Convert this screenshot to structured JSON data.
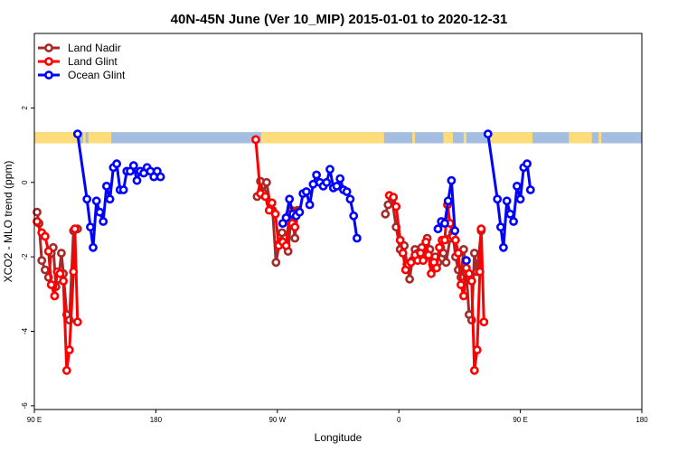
{
  "colors": {
    "land_nadir": "#a52a2a",
    "land_glint": "#ff0000",
    "ocean_glint": "#0000ff",
    "land_band": "#fedc7a",
    "ocean_band": "#a3bee0"
  },
  "chart_data": {
    "type": "line",
    "title": "40N-45N June (Ver 10_MIP)   2015-01-01 to 2020-12-31",
    "xlabel": "Longitude",
    "ylabel": "XCO2 - MLO trend (ppm)",
    "xlim": [
      90,
      540
    ],
    "ylim": [
      -6.1,
      4.0
    ],
    "x_ticks": [
      {
        "value": 90,
        "label": "90 E"
      },
      {
        "value": 180,
        "label": "180"
      },
      {
        "value": 270,
        "label": "90 W"
      },
      {
        "value": 360,
        "label": "0"
      },
      {
        "value": 450,
        "label": "90 E"
      },
      {
        "value": 540,
        "label": "180"
      }
    ],
    "y_ticks": [
      {
        "value": 2,
        "label": "2"
      },
      {
        "value": 0,
        "label": "0"
      },
      {
        "value": -2,
        "label": "-2"
      },
      {
        "value": -4,
        "label": "-4"
      },
      {
        "value": -6,
        "label": "-6"
      }
    ],
    "grid": false,
    "legend": "top-left",
    "band": {
      "y_range": [
        1.05,
        1.35
      ],
      "land_segments": [
        [
          90,
          122
        ],
        [
          126,
          128
        ],
        [
          130,
          147
        ],
        [
          258,
          349
        ],
        [
          370,
          372
        ],
        [
          393,
          400
        ],
        [
          408,
          410
        ],
        [
          427,
          459
        ],
        [
          486,
          503
        ],
        [
          508,
          510
        ]
      ]
    },
    "series": [
      {
        "name": "Land Nadir",
        "color_key": "land_nadir",
        "segments": [
          [
            [
              92,
              -0.8
            ],
            [
              93.5,
              -1.1
            ],
            [
              95.5,
              -2.1
            ],
            [
              98,
              -2.35
            ],
            [
              100.5,
              -2.55
            ],
            [
              102.5,
              -1.9
            ],
            [
              104,
              -1.75
            ],
            [
              106,
              -2.8
            ],
            [
              108,
              -2.6
            ],
            [
              110,
              -1.9
            ],
            [
              111.5,
              -2.45
            ],
            [
              114,
              -3.55
            ],
            [
              116,
              -3.7
            ],
            [
              119,
              -1.3
            ],
            [
              122,
              -1.25
            ]
          ],
          [
            [
              255,
              -0.38
            ],
            [
              257.5,
              0.03
            ],
            [
              259.5,
              -0.28
            ],
            [
              262,
              0.0
            ],
            [
              264.5,
              -0.55
            ],
            [
              266.5,
              -0.75
            ],
            [
              269,
              -2.15
            ],
            [
              271.5,
              -1.65
            ],
            [
              273.5,
              -1.35
            ],
            [
              276,
              -1.5
            ],
            [
              278,
              -1.85
            ],
            [
              280.5,
              -0.75
            ],
            [
              283,
              -1.5
            ],
            [
              285,
              -0.75
            ]
          ],
          [
            [
              350,
              -0.85
            ],
            [
              352,
              -0.6
            ],
            [
              355,
              -0.45
            ],
            [
              358,
              -1.2
            ],
            [
              361,
              -1.8
            ],
            [
              364,
              -1.7
            ],
            [
              366,
              -2.2
            ],
            [
              368,
              -2.6
            ],
            [
              370,
              -2.1
            ],
            [
              372,
              -1.8
            ],
            [
              374,
              -1.9
            ],
            [
              377,
              -1.75
            ],
            [
              379,
              -2.0
            ],
            [
              381,
              -1.5
            ],
            [
              383,
              -1.8
            ],
            [
              385,
              -2.2
            ],
            [
              387,
              -2.0
            ],
            [
              389,
              -2.15
            ],
            [
              391,
              -1.75
            ],
            [
              393,
              -1.9
            ],
            [
              395,
              -2.15
            ],
            [
              398,
              -1.5
            ],
            [
              400,
              -1.35
            ],
            [
              402,
              -2.0
            ],
            [
              404,
              -2.35
            ],
            [
              406,
              -2.55
            ],
            [
              408,
              -1.8
            ],
            [
              410,
              -2.45
            ],
            [
              412,
              -3.55
            ],
            [
              414,
              -3.7
            ],
            [
              416,
              -1.9
            ],
            [
              418,
              -2.4
            ],
            [
              421,
              -1.3
            ]
          ]
        ]
      },
      {
        "name": "Land Glint",
        "color_key": "land_glint",
        "segments": [
          [
            [
              92,
              -1.05
            ],
            [
              95.5,
              -1.35
            ],
            [
              98,
              -1.45
            ],
            [
              100.5,
              -1.85
            ],
            [
              102.5,
              -2.75
            ],
            [
              105,
              -3.05
            ],
            [
              107,
              -2.4
            ],
            [
              109,
              -2.45
            ],
            [
              111.5,
              -2.65
            ],
            [
              114,
              -5.05
            ],
            [
              116,
              -4.5
            ],
            [
              119,
              -2.4
            ],
            [
              120,
              -1.25
            ],
            [
              122,
              -3.75
            ]
          ],
          [
            [
              254,
              1.15
            ],
            [
              257.5,
              -0.3
            ],
            [
              261,
              -0.38
            ],
            [
              264,
              -0.75
            ],
            [
              266,
              -0.55
            ],
            [
              268.5,
              -0.85
            ],
            [
              271,
              -1.7
            ],
            [
              274,
              -1.6
            ],
            [
              276.5,
              -1.7
            ],
            [
              279,
              -0.85
            ],
            [
              281,
              -1.1
            ],
            [
              283,
              -1.2
            ],
            [
              285.5,
              -0.8
            ]
          ],
          [
            [
              353,
              -0.35
            ],
            [
              356,
              -0.4
            ],
            [
              358,
              -0.65
            ],
            [
              361,
              -1.55
            ],
            [
              363,
              -1.9
            ],
            [
              365,
              -2.35
            ],
            [
              367,
              -2.2
            ],
            [
              369,
              -2.15
            ],
            [
              372,
              -1.95
            ],
            [
              374,
              -2.1
            ],
            [
              376,
              -1.9
            ],
            [
              378,
              -2.1
            ],
            [
              380,
              -1.6
            ],
            [
              382,
              -1.95
            ],
            [
              384,
              -2.45
            ],
            [
              386,
              -2.15
            ],
            [
              388,
              -2.3
            ],
            [
              390,
              -1.75
            ],
            [
              392,
              -1.55
            ],
            [
              394,
              -1.55
            ],
            [
              396,
              -0.6
            ],
            [
              398,
              -1.1
            ],
            [
              400,
              -1.45
            ],
            [
              402,
              -1.55
            ],
            [
              404,
              -1.9
            ],
            [
              406,
              -2.75
            ],
            [
              408,
              -3.05
            ],
            [
              410,
              -2.3
            ],
            [
              412,
              -2.45
            ],
            [
              414,
              -2.65
            ],
            [
              416,
              -5.05
            ],
            [
              418,
              -4.5
            ],
            [
              420,
              -2.4
            ],
            [
              421,
              -1.25
            ],
            [
              423,
              -3.75
            ]
          ]
        ]
      },
      {
        "name": "Ocean Glint",
        "color_key": "ocean_glint",
        "segments": [
          [
            [
              122,
              1.3
            ],
            [
              129,
              -0.45
            ],
            [
              131.5,
              -1.2
            ],
            [
              133.5,
              -1.75
            ],
            [
              136,
              -0.5
            ],
            [
              138.5,
              -0.8
            ],
            [
              141,
              -1.05
            ],
            [
              143.5,
              -0.1
            ],
            [
              146,
              -0.45
            ],
            [
              148.5,
              0.4
            ],
            [
              151,
              0.5
            ],
            [
              153.5,
              -0.2
            ],
            [
              156,
              -0.2
            ],
            [
              158.5,
              0.3
            ],
            [
              161,
              0.3
            ],
            [
              163.5,
              0.45
            ],
            [
              166,
              0.05
            ],
            [
              168.5,
              0.3
            ],
            [
              171,
              0.25
            ],
            [
              173.5,
              0.4
            ],
            [
              176,
              0.3
            ],
            [
              178.5,
              0.15
            ],
            [
              181,
              0.3
            ],
            [
              183.5,
              0.15
            ]
          ],
          [
            [
              274,
              -1.1
            ],
            [
              276.5,
              -0.95
            ],
            [
              279,
              -0.45
            ],
            [
              281.5,
              -0.85
            ],
            [
              284,
              -0.9
            ],
            [
              286.5,
              -0.8
            ],
            [
              289,
              -0.3
            ],
            [
              291.5,
              -0.25
            ],
            [
              294,
              -0.6
            ],
            [
              296.5,
              -0.05
            ],
            [
              299,
              0.2
            ],
            [
              301.5,
              0.0
            ],
            [
              304,
              -0.1
            ],
            [
              306.5,
              0.0
            ],
            [
              309,
              0.35
            ],
            [
              311.5,
              -0.15
            ],
            [
              314,
              -0.1
            ],
            [
              316.5,
              0.1
            ],
            [
              319,
              -0.2
            ],
            [
              321.5,
              -0.25
            ],
            [
              324,
              -0.45
            ],
            [
              326.5,
              -0.9
            ],
            [
              329,
              -1.5
            ]
          ],
          [
            [
              389,
              -1.25
            ],
            [
              391.5,
              -1.05
            ],
            [
              394,
              -1.1
            ],
            [
              396.5,
              -0.5
            ],
            [
              399,
              0.05
            ],
            [
              401.5,
              -1.3
            ]
          ],
          [
            [
              410,
              -2.1
            ]
          ],
          [
            [
              426,
              1.3
            ],
            [
              433,
              -0.45
            ],
            [
              435.5,
              -1.2
            ],
            [
              437.5,
              -1.75
            ],
            [
              440,
              -0.5
            ],
            [
              442.5,
              -0.85
            ],
            [
              445,
              -1.05
            ],
            [
              447.5,
              -0.1
            ],
            [
              450,
              -0.45
            ],
            [
              452.5,
              0.4
            ],
            [
              455,
              0.5
            ],
            [
              457.5,
              -0.2
            ]
          ]
        ]
      }
    ]
  }
}
